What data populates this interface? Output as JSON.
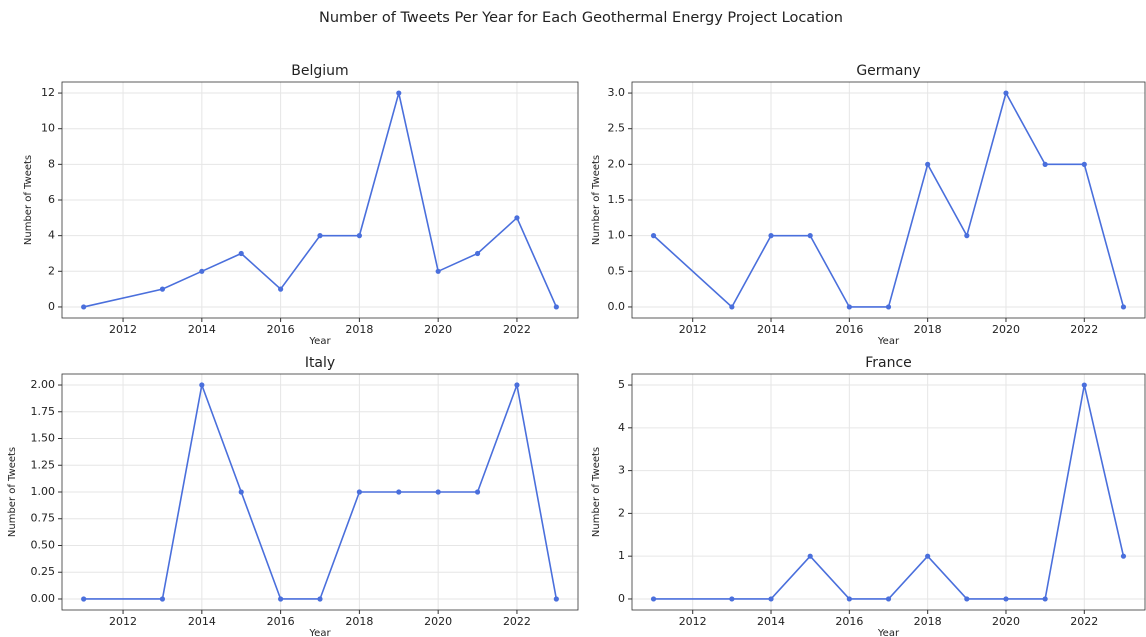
{
  "title": "Number of Tweets Per Year for Each Geothermal Energy Project Location",
  "chart_data": [
    {
      "type": "line",
      "title": "Belgium",
      "x_label": "Year",
      "y_label": "Number of Tweets",
      "x": [
        2011,
        2013,
        2014,
        2015,
        2016,
        2017,
        2018,
        2019,
        2020,
        2021,
        2022,
        2023
      ],
      "series": [
        {
          "name": "Belgium",
          "color": "#4a6fdc",
          "values": [
            0,
            1,
            2,
            3,
            1,
            4,
            4,
            12,
            2,
            3,
            5,
            0
          ]
        }
      ],
      "xlim": [
        2010.45,
        2023.55
      ],
      "xticks": [
        2012,
        2014,
        2016,
        2018,
        2020,
        2022
      ],
      "ylim": [
        -0.62,
        12.62
      ],
      "yticks": [
        0,
        2,
        4,
        6,
        8,
        10,
        12
      ],
      "grid": true
    },
    {
      "type": "line",
      "title": "Germany",
      "x_label": "Year",
      "y_label": "Number of Tweets",
      "x": [
        2011,
        2013,
        2014,
        2015,
        2016,
        2017,
        2018,
        2019,
        2020,
        2021,
        2022,
        2023
      ],
      "series": [
        {
          "name": "Germany",
          "color": "#4a6fdc",
          "values": [
            1,
            0,
            1,
            1,
            0,
            0,
            2,
            1,
            3,
            2,
            2,
            0
          ]
        }
      ],
      "xlim": [
        2010.45,
        2023.55
      ],
      "xticks": [
        2012,
        2014,
        2016,
        2018,
        2020,
        2022
      ],
      "ylim": [
        -0.155,
        3.155
      ],
      "yticks": [
        {
          "value": 0,
          "label": "0.0"
        },
        0.5,
        {
          "value": 1,
          "label": "1.0"
        },
        1.5,
        {
          "value": 2,
          "label": "2.0"
        },
        2.5,
        {
          "value": 3,
          "label": "3.0"
        }
      ],
      "grid": true
    },
    {
      "type": "line",
      "title": "Italy",
      "x_label": "Year",
      "y_label": "Number of Tweets",
      "x": [
        2011,
        2013,
        2014,
        2015,
        2016,
        2017,
        2018,
        2019,
        2020,
        2021,
        2022,
        2023
      ],
      "series": [
        {
          "name": "Italy",
          "color": "#4a6fdc",
          "values": [
            0,
            0,
            2,
            1,
            0,
            0,
            1,
            1,
            1,
            1,
            2,
            0
          ]
        }
      ],
      "xlim": [
        2010.45,
        2023.55
      ],
      "xticks": [
        2012,
        2014,
        2016,
        2018,
        2020,
        2022
      ],
      "ylim": [
        -0.103,
        2.103
      ],
      "yticks": [
        {
          "value": 0,
          "label": "0.00"
        },
        0.25,
        {
          "value": 0.5,
          "label": "0.50"
        },
        0.75,
        {
          "value": 1,
          "label": "1.00"
        },
        1.25,
        {
          "value": 1.5,
          "label": "1.50"
        },
        1.75,
        {
          "value": 2,
          "label": "2.00"
        }
      ],
      "grid": true
    },
    {
      "type": "line",
      "title": "France",
      "x_label": "Year",
      "y_label": "Number of Tweets",
      "x": [
        2011,
        2013,
        2014,
        2015,
        2016,
        2017,
        2018,
        2019,
        2020,
        2021,
        2022,
        2023
      ],
      "series": [
        {
          "name": "France",
          "color": "#4a6fdc",
          "values": [
            0,
            0,
            0,
            1,
            0,
            0,
            1,
            0,
            0,
            0,
            5,
            1
          ]
        }
      ],
      "xlim": [
        2010.45,
        2023.55
      ],
      "xticks": [
        2012,
        2014,
        2016,
        2018,
        2020,
        2022
      ],
      "ylim": [
        -0.258,
        5.258
      ],
      "yticks": [
        0,
        1,
        2,
        3,
        4,
        5
      ],
      "grid": true
    }
  ]
}
